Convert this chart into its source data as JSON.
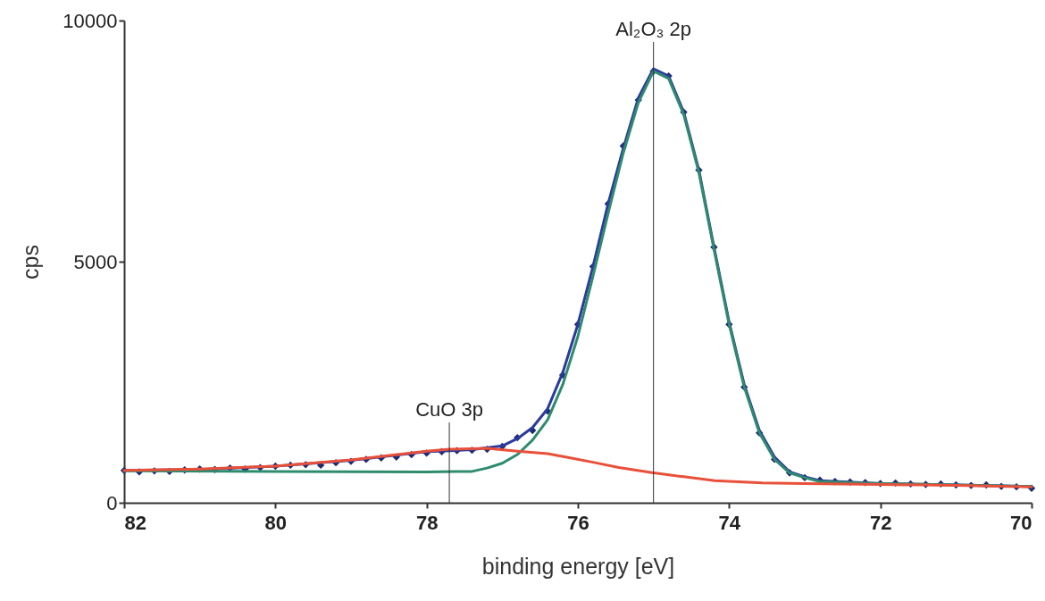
{
  "chart_data": {
    "type": "line",
    "xlabel": "binding energy [eV]",
    "ylabel": "cps",
    "xlim": [
      82,
      70
    ],
    "xticks": [
      82,
      80,
      78,
      76,
      74,
      72,
      70
    ],
    "ylim": [
      0,
      10000
    ],
    "yticks": [
      0,
      5000,
      10000
    ],
    "grid": false,
    "ref_lines": [
      {
        "axis": "x",
        "value": 77.7,
        "label": "CuO 3p"
      },
      {
        "axis": "x",
        "value": 75.0,
        "label": "Al₂O₃ 2p"
      }
    ],
    "series": [
      {
        "type": "scatter",
        "marker": "diamond",
        "color": "#1f2a6e",
        "x": [
          82.0,
          81.8,
          81.6,
          81.4,
          81.2,
          81.0,
          80.8,
          80.6,
          80.4,
          80.2,
          80.0,
          79.8,
          79.6,
          79.4,
          79.2,
          79.0,
          78.8,
          78.6,
          78.4,
          78.2,
          78.0,
          77.8,
          77.6,
          77.4,
          77.2,
          77.0,
          76.8,
          76.6,
          76.4,
          76.2,
          76.0,
          75.8,
          75.6,
          75.4,
          75.2,
          75.0,
          74.8,
          74.6,
          74.4,
          74.2,
          74.0,
          73.8,
          73.6,
          73.4,
          73.2,
          73.0,
          72.8,
          72.6,
          72.4,
          72.2,
          72.0,
          71.8,
          71.6,
          71.4,
          71.2,
          71.0,
          70.8,
          70.6,
          70.4,
          70.2,
          70.0
        ],
        "values": [
          670,
          640,
          660,
          650,
          680,
          700,
          690,
          720,
          700,
          730,
          760,
          780,
          790,
          780,
          830,
          860,
          900,
          930,
          950,
          1000,
          1030,
          1060,
          1080,
          1090,
          1110,
          1170,
          1350,
          1500,
          1900,
          2650,
          3700,
          4900,
          6200,
          7400,
          8350,
          8950,
          8850,
          8100,
          6900,
          5300,
          3700,
          2400,
          1450,
          900,
          620,
          520,
          470,
          440,
          430,
          420,
          400,
          410,
          390,
          380,
          390,
          370,
          360,
          370,
          340,
          330,
          300
        ]
      },
      {
        "color": "#2b3a9e",
        "x": [
          82.0,
          81.0,
          80.0,
          79.0,
          78.0,
          77.4,
          77.0,
          76.8,
          76.6,
          76.4,
          76.2,
          76.0,
          75.8,
          75.6,
          75.4,
          75.2,
          75.0,
          74.8,
          74.6,
          74.4,
          74.2,
          74.0,
          73.8,
          73.6,
          73.4,
          73.2,
          73.0,
          72.8,
          72.0,
          71.0,
          70.0
        ],
        "values": [
          670,
          690,
          760,
          880,
          1060,
          1100,
          1180,
          1330,
          1560,
          1950,
          2700,
          3700,
          4900,
          6200,
          7350,
          8400,
          9000,
          8850,
          8100,
          6900,
          5300,
          3750,
          2450,
          1500,
          950,
          640,
          540,
          460,
          400,
          370,
          340
        ]
      },
      {
        "color": "#2e8b6e",
        "x": [
          82.0,
          80.0,
          78.0,
          77.4,
          77.2,
          77.0,
          76.8,
          76.6,
          76.4,
          76.2,
          76.0,
          75.8,
          75.6,
          75.4,
          75.2,
          75.0,
          74.8,
          74.6,
          74.4,
          74.2,
          74.0,
          73.8,
          73.6,
          73.4,
          73.2,
          73.0,
          72.8,
          72.0,
          71.0,
          70.0
        ],
        "values": [
          660,
          650,
          640,
          650,
          720,
          820,
          1000,
          1300,
          1720,
          2450,
          3450,
          4700,
          6000,
          7250,
          8300,
          8950,
          8800,
          8050,
          6850,
          5250,
          3700,
          2400,
          1450,
          900,
          620,
          520,
          440,
          400,
          370,
          340
        ]
      },
      {
        "color": "#e8503a",
        "x": [
          82.0,
          81.0,
          80.0,
          79.0,
          78.0,
          77.7,
          77.2,
          76.8,
          76.4,
          76.1,
          75.8,
          75.46,
          75.04,
          74.6,
          74.19,
          73.56,
          73.0,
          72.0,
          71.0,
          70.0
        ],
        "values": [
          670,
          700,
          760,
          890,
          1070,
          1110,
          1130,
          1070,
          1020,
          930,
          840,
          730,
          630,
          540,
          460,
          410,
          400,
          380,
          360,
          330
        ]
      }
    ]
  }
}
